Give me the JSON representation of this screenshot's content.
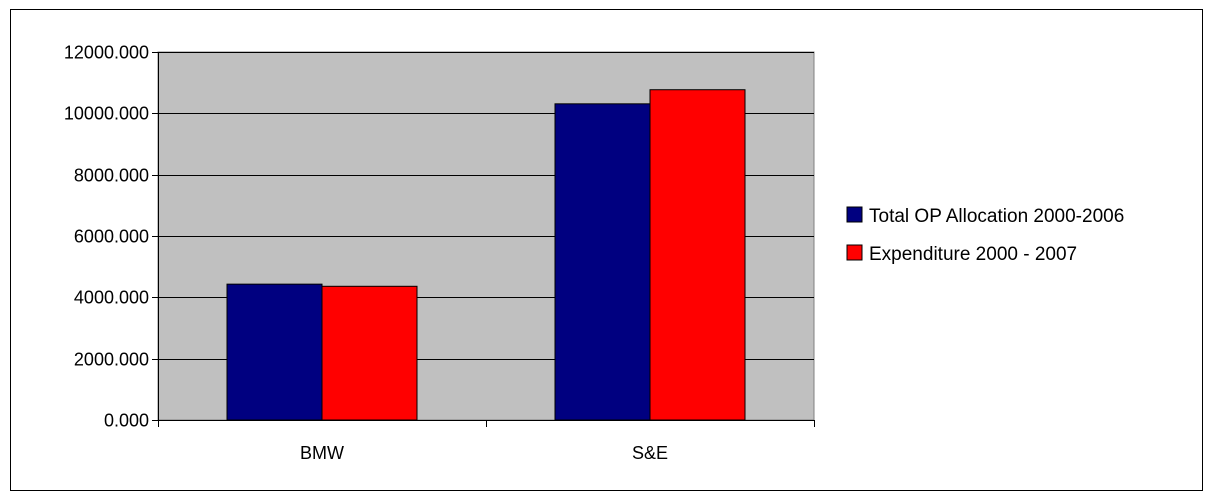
{
  "chart_data": {
    "type": "bar",
    "categories": [
      "BMW",
      "S&E"
    ],
    "series": [
      {
        "name": "Total OP Allocation 2000-2006",
        "color": "#000080",
        "values": [
          4430,
          10310
        ]
      },
      {
        "name": "Expenditure 2000 - 2007",
        "color": "#ff0000",
        "values": [
          4360,
          10770
        ]
      }
    ],
    "ylim": [
      0,
      12000
    ],
    "yticks": [
      0,
      2000,
      4000,
      6000,
      8000,
      10000,
      12000
    ],
    "ytick_labels": [
      "0.000",
      "2000.000",
      "4000.000",
      "6000.000",
      "8000.000",
      "10000.000",
      "12000.000"
    ],
    "grid": true,
    "plot_background": "#c0c0c0",
    "legend": "right",
    "title": "",
    "xlabel": "",
    "ylabel": ""
  }
}
